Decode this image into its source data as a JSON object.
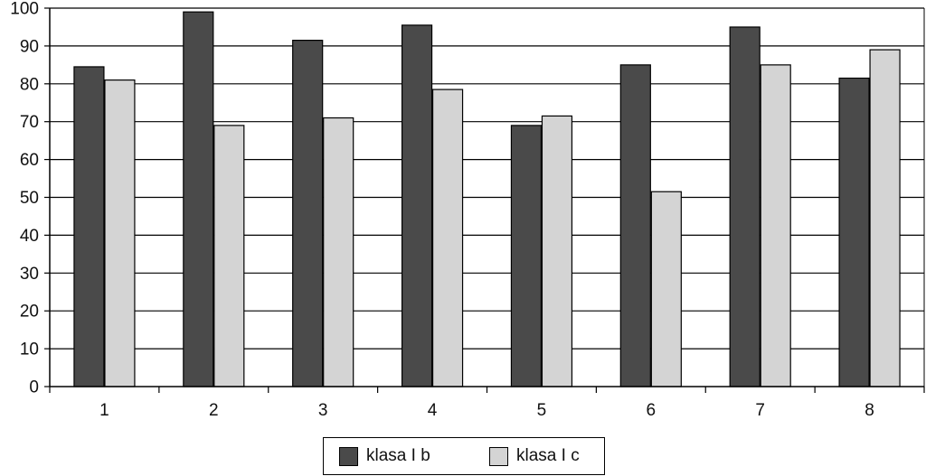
{
  "chart_data": {
    "type": "bar",
    "title": "",
    "xlabel": "",
    "ylabel": "",
    "categories": [
      "1",
      "2",
      "3",
      "4",
      "5",
      "6",
      "7",
      "8"
    ],
    "series": [
      {
        "name": "klasa I b",
        "color": "#4a4a4a",
        "values": [
          84.5,
          99,
          91.5,
          95.5,
          69,
          85,
          95,
          81.5
        ]
      },
      {
        "name": "klasa I c",
        "color": "#d4d4d4",
        "values": [
          81,
          69,
          71,
          78.5,
          71.5,
          51.5,
          85,
          89
        ]
      }
    ],
    "ylim": [
      0,
      100
    ],
    "yticks": [
      0,
      10,
      20,
      30,
      40,
      50,
      60,
      70,
      80,
      90,
      100
    ],
    "ytick_labels": [
      "0",
      "10",
      "20",
      "30",
      "40",
      "50",
      "60",
      "70",
      "80",
      "90",
      "100"
    ],
    "grid": true,
    "legend_position": "bottom-center"
  }
}
